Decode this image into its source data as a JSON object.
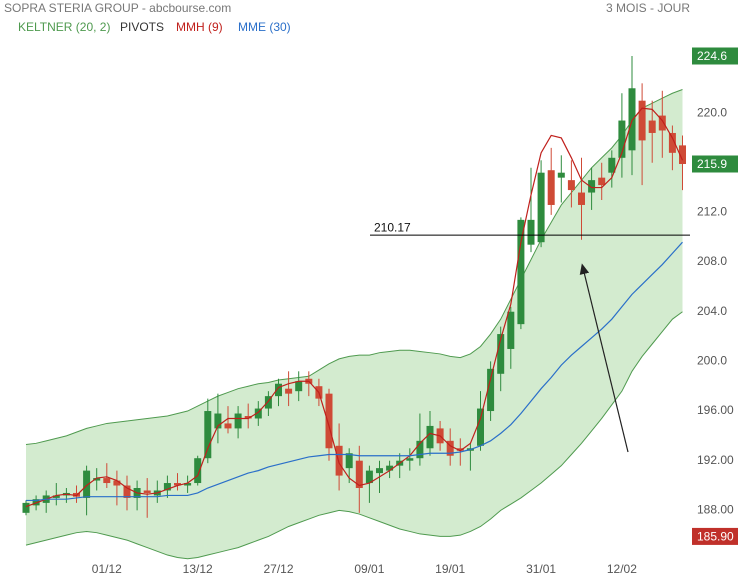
{
  "chart_data": {
    "type": "candlestick",
    "title": "SOPRA STERIA GROUP - abcbourse.com",
    "period": "3 MOIS - JOUR",
    "categories": [
      null,
      null,
      null,
      null,
      null,
      null,
      null,
      null,
      "01/12",
      null,
      null,
      null,
      null,
      null,
      null,
      null,
      null,
      "13/12",
      null,
      null,
      null,
      null,
      null,
      null,
      null,
      "27/12",
      null,
      null,
      null,
      null,
      null,
      null,
      null,
      null,
      "09/01",
      null,
      null,
      null,
      null,
      null,
      null,
      null,
      "19/01",
      null,
      null,
      null,
      null,
      null,
      null,
      null,
      null,
      "31/01",
      null,
      null,
      null,
      null,
      null,
      null,
      null,
      "12/02",
      null,
      null,
      null,
      null,
      null,
      null
    ],
    "open": [
      187.8,
      188.4,
      188.6,
      189.0,
      189.2,
      189.4,
      189.0,
      190.4,
      190.6,
      190.4,
      190.0,
      189.0,
      189.6,
      189.2,
      189.6,
      190.2,
      190.0,
      190.2,
      192.2,
      194.6,
      195.0,
      194.6,
      195.6,
      195.4,
      196.2,
      197.2,
      197.8,
      197.6,
      198.6,
      198.0,
      197.4,
      193.2,
      191.4,
      192.0,
      190.2,
      191.0,
      191.2,
      191.6,
      192.0,
      192.2,
      193.0,
      194.6,
      193.6,
      193.0,
      192.8,
      193.2,
      196.0,
      199.0,
      201.0,
      203.0,
      209.4,
      209.6,
      215.4,
      214.8,
      214.6,
      213.6,
      213.6,
      214.8,
      215.2,
      216.4,
      217.0,
      221.0,
      219.4,
      219.8,
      218.4,
      217.4
    ],
    "high": [
      188.8,
      189.2,
      189.6,
      190.2,
      189.8,
      190.0,
      191.6,
      191.4,
      191.8,
      191.2,
      190.8,
      190.4,
      190.6,
      190.4,
      190.8,
      191.0,
      190.8,
      192.4,
      197.0,
      197.4,
      196.4,
      196.4,
      196.6,
      196.8,
      197.6,
      198.6,
      199.2,
      199.2,
      199.2,
      198.6,
      197.8,
      195.0,
      193.0,
      193.2,
      191.6,
      192.0,
      192.0,
      192.6,
      193.0,
      195.8,
      196.0,
      195.2,
      194.6,
      193.8,
      193.4,
      197.6,
      200.0,
      202.8,
      204.4,
      211.6,
      215.6,
      216.2,
      217.2,
      216.6,
      216.2,
      216.4,
      215.6,
      216.0,
      217.0,
      221.6,
      224.6,
      222.4,
      221.0,
      221.8,
      219.0,
      218.2
    ],
    "low": [
      187.6,
      188.0,
      187.8,
      188.4,
      188.6,
      188.6,
      187.6,
      189.6,
      189.8,
      188.4,
      188.0,
      188.0,
      187.4,
      188.6,
      189.0,
      189.6,
      189.4,
      190.0,
      191.8,
      193.4,
      194.2,
      193.8,
      194.6,
      194.8,
      195.6,
      196.4,
      196.4,
      196.8,
      197.2,
      196.4,
      192.0,
      189.6,
      190.2,
      187.8,
      188.6,
      189.4,
      190.6,
      190.6,
      191.2,
      191.6,
      192.4,
      192.8,
      191.6,
      191.6,
      191.2,
      192.8,
      195.2,
      197.6,
      199.4,
      202.6,
      208.8,
      209.2,
      211.8,
      212.8,
      212.4,
      209.8,
      212.2,
      213.0,
      214.0,
      214.8,
      215.0,
      214.2,
      216.0,
      216.4,
      215.4,
      213.8
    ],
    "close": [
      188.6,
      188.9,
      189.2,
      189.2,
      189.4,
      189.1,
      191.2,
      190.6,
      190.2,
      190.0,
      189.0,
      189.8,
      189.4,
      189.6,
      190.2,
      190.0,
      190.2,
      192.2,
      196.0,
      195.8,
      194.6,
      195.8,
      195.4,
      196.2,
      197.2,
      198.2,
      197.4,
      198.4,
      198.2,
      197.0,
      193.0,
      190.8,
      192.6,
      189.8,
      191.2,
      191.4,
      191.6,
      192.0,
      192.2,
      193.6,
      194.8,
      193.4,
      192.4,
      192.8,
      193.0,
      196.2,
      199.4,
      202.2,
      204.0,
      211.4,
      211.4,
      215.2,
      212.6,
      215.2,
      213.8,
      212.6,
      214.6,
      214.2,
      216.4,
      219.4,
      222.0,
      217.8,
      218.4,
      218.6,
      216.8,
      215.9
    ],
    "up_color": "#2e8b3e",
    "down_color": "#cf4a36",
    "keltner": {
      "name": "KELTNER (20, 2)",
      "color": "#4f9a4f",
      "fill": "#d3ebcf",
      "upper": [
        193.3,
        193.4,
        193.6,
        193.8,
        194.0,
        194.3,
        194.6,
        194.8,
        195.0,
        195.1,
        195.2,
        195.3,
        195.4,
        195.5,
        195.6,
        195.8,
        196.0,
        196.4,
        196.8,
        197.2,
        197.5,
        197.8,
        198.0,
        198.2,
        198.3,
        198.5,
        198.6,
        198.7,
        198.8,
        199.3,
        199.8,
        200.2,
        200.4,
        200.5,
        200.5,
        200.7,
        200.8,
        200.9,
        200.9,
        200.8,
        200.7,
        200.6,
        200.4,
        200.3,
        200.6,
        201.2,
        202.2,
        203.4,
        205.0,
        206.6,
        208.2,
        209.8,
        211.2,
        212.6,
        213.6,
        214.6,
        215.6,
        216.4,
        217.2,
        218.2,
        219.4,
        220.4,
        220.8,
        221.2,
        221.6,
        221.9
      ],
      "lower": [
        185.2,
        185.4,
        185.6,
        185.8,
        186.0,
        186.2,
        186.3,
        186.2,
        186.0,
        185.8,
        185.6,
        185.3,
        185.0,
        184.7,
        184.4,
        184.2,
        184.1,
        184.2,
        184.4,
        184.6,
        184.8,
        185.0,
        185.3,
        185.6,
        185.9,
        186.3,
        186.7,
        187.0,
        187.3,
        187.6,
        187.8,
        188.0,
        187.9,
        187.7,
        187.4,
        187.1,
        186.8,
        186.5,
        186.3,
        186.1,
        186.0,
        185.9,
        185.9,
        186.0,
        186.3,
        186.7,
        187.3,
        188.0,
        188.5,
        189.0,
        189.6,
        190.2,
        190.9,
        191.6,
        192.5,
        193.4,
        194.4,
        195.4,
        196.5,
        197.6,
        199.2,
        200.4,
        201.4,
        202.4,
        203.4,
        204.0
      ]
    },
    "pivots": {
      "name": "PIVOTS",
      "color": "#000000",
      "value": 210.17
    },
    "series": [
      {
        "name": "MMH (9)",
        "color": "#c0201c",
        "values": [
          188.3,
          188.6,
          188.9,
          189.2,
          189.3,
          189.2,
          190.0,
          190.6,
          190.7,
          190.4,
          189.8,
          189.4,
          189.3,
          189.4,
          189.7,
          190.0,
          190.2,
          190.8,
          193.0,
          194.8,
          195.4,
          195.4,
          195.4,
          195.9,
          196.8,
          197.9,
          198.2,
          198.4,
          198.4,
          197.5,
          194.8,
          191.8,
          190.6,
          190.0,
          190.2,
          190.7,
          191.2,
          191.8,
          192.4,
          193.4,
          194.2,
          194.0,
          193.2,
          192.8,
          193.4,
          195.4,
          198.6,
          201.8,
          204.6,
          209.6,
          213.4,
          216.8,
          218.2,
          218.0,
          216.4,
          214.6,
          214.0,
          214.0,
          214.8,
          216.8,
          219.4,
          220.4,
          220.3,
          219.4,
          218.0,
          216.2
        ]
      },
      {
        "name": "MME (30)",
        "color": "#2a6fc9",
        "values": [
          188.8,
          188.8,
          188.9,
          188.9,
          188.9,
          189.0,
          189.1,
          189.1,
          189.1,
          189.1,
          189.1,
          189.1,
          189.1,
          189.1,
          189.2,
          189.2,
          189.2,
          189.4,
          189.8,
          190.1,
          190.4,
          190.7,
          191.0,
          191.2,
          191.5,
          191.7,
          191.9,
          192.1,
          192.3,
          192.4,
          192.5,
          192.5,
          192.5,
          192.4,
          192.4,
          192.4,
          192.4,
          192.4,
          192.4,
          192.5,
          192.6,
          192.6,
          192.6,
          192.7,
          192.9,
          193.2,
          193.6,
          194.2,
          194.9,
          195.8,
          196.8,
          197.8,
          198.7,
          199.7,
          200.5,
          201.2,
          201.9,
          202.6,
          203.4,
          204.4,
          205.4,
          206.2,
          207.0,
          207.8,
          208.7,
          209.6
        ]
      }
    ],
    "ylim": [
      184,
      227.5
    ],
    "yticks": [
      {
        "value": 188,
        "label": "188.00"
      },
      {
        "value": 192,
        "label": "192.00"
      },
      {
        "value": 196,
        "label": "196.00"
      },
      {
        "value": 200,
        "label": "200.0"
      },
      {
        "value": 204,
        "label": "204.0"
      },
      {
        "value": 208,
        "label": "208.0"
      },
      {
        "value": 212,
        "label": "212.0"
      },
      {
        "value": 216,
        "label": "216.0"
      },
      {
        "value": 220,
        "label": "220.0"
      }
    ],
    "price_tags": [
      {
        "value": 224.6,
        "color": "#2e8b3e"
      },
      {
        "value": 215.9,
        "color": "#2e8b3e"
      },
      {
        "value": {
          "value": 185.9,
          "label": "185.90"
        },
        "color": "#c0302a"
      }
    ]
  }
}
